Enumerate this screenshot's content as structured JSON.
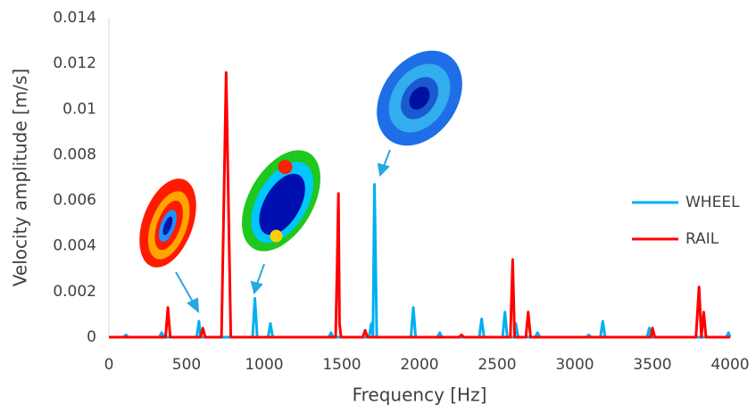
{
  "chart_data": {
    "type": "line",
    "x_label": "Frequency [Hz]",
    "y_label": "Velocity amplitude [m/s]",
    "x": [
      0,
      95,
      110,
      125,
      325,
      340,
      355,
      365,
      380,
      395,
      565,
      580,
      590,
      605,
      620,
      725,
      755,
      785,
      925,
      940,
      955,
      1025,
      1040,
      1055,
      1415,
      1430,
      1445,
      1460,
      1470,
      1478,
      1485,
      1495,
      1635,
      1650,
      1665,
      1675,
      1690,
      1700,
      1710,
      1725,
      1945,
      1960,
      1975,
      2115,
      2130,
      2145,
      2255,
      2270,
      2285,
      2385,
      2400,
      2415,
      2535,
      2550,
      2565,
      2585,
      2600,
      2612,
      2620,
      2635,
      2685,
      2700,
      2715,
      2745,
      2760,
      2775,
      3075,
      3090,
      3105,
      3165,
      3180,
      3195,
      3465,
      3480,
      3490,
      3500,
      3515,
      3780,
      3800,
      3815,
      3830,
      3845,
      3975,
      3990,
      4000
    ],
    "series": [
      {
        "name": "WHEEL",
        "color": "#00b0f0",
        "values": [
          0,
          0,
          0.0001,
          0,
          0,
          0.0002,
          0,
          0,
          0,
          0,
          0,
          0.0007,
          0,
          0,
          0,
          0,
          0,
          0,
          0,
          0.0017,
          0,
          0,
          0.0006,
          0,
          0,
          0.0002,
          0,
          0,
          0,
          0,
          0,
          0,
          0,
          0,
          0,
          0,
          0.0006,
          0,
          0.0067,
          0,
          0,
          0.0013,
          0,
          0,
          0.0002,
          0,
          0,
          0,
          0,
          0,
          0.0008,
          0,
          0,
          0.0011,
          0,
          0,
          0,
          0,
          0.0006,
          0,
          0,
          0,
          0,
          0,
          0.0002,
          0,
          0,
          0.0001,
          0,
          0,
          0.0007,
          0,
          0,
          0.0004,
          0,
          0,
          0,
          0,
          0,
          0,
          0,
          0,
          0,
          0.0002,
          0
        ]
      },
      {
        "name": "RAIL",
        "color": "#ff0000",
        "values": [
          0,
          0,
          0,
          0,
          0,
          0,
          0,
          0,
          0.0013,
          0,
          0,
          0,
          0,
          0.0004,
          0,
          0,
          0.0116,
          0,
          0,
          0,
          0,
          0,
          0,
          0,
          0,
          0,
          0,
          0,
          0.0032,
          0.0063,
          0.0006,
          0,
          0,
          0.0003,
          0,
          0,
          0,
          0,
          0,
          0,
          0,
          0,
          0,
          0,
          0,
          0,
          0,
          0.0001,
          0,
          0,
          0,
          0,
          0,
          0,
          0,
          0,
          0.0034,
          0,
          0,
          0,
          0,
          0.0011,
          0,
          0,
          0,
          0,
          0,
          0,
          0,
          0,
          0,
          0,
          0,
          0,
          0,
          0.0004,
          0,
          0,
          0.0022,
          0,
          0.0011,
          0,
          0,
          0,
          0
        ]
      }
    ],
    "xlim": [
      0,
      4000
    ],
    "xticks": [
      0,
      500,
      1000,
      1500,
      2000,
      2500,
      3000,
      3500,
      4000
    ],
    "ylim": [
      0,
      0.014
    ],
    "yticks": [
      0,
      0.002,
      0.004,
      0.006,
      0.008,
      0.01,
      0.012,
      0.014
    ],
    "grid": false,
    "legend": "right"
  }
}
